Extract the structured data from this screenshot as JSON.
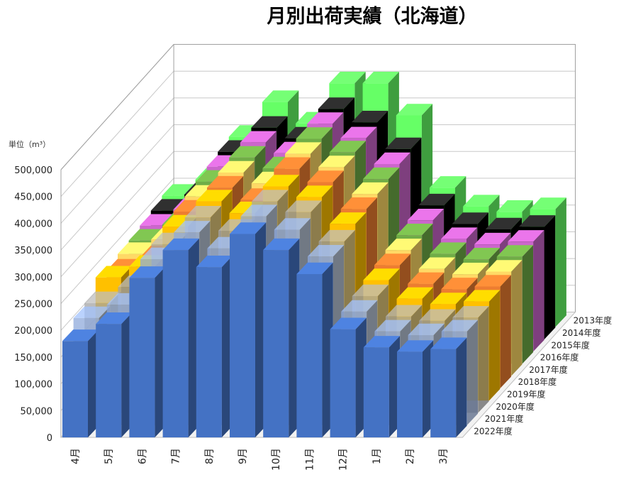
{
  "chart_data": {
    "type": "bar",
    "subtype": "3d-bar",
    "title": "月別出荷実績（北海道）",
    "unit_label": "単位（m³）",
    "xlabel": "",
    "ylabel": "",
    "ylim": [
      0,
      500000
    ],
    "y_ticks": [
      "0",
      "50,000",
      "100,000",
      "150,000",
      "200,000",
      "250,000",
      "300,000",
      "350,000",
      "400,000",
      "450,000",
      "500,000"
    ],
    "categories": [
      "4月",
      "5月",
      "6月",
      "7月",
      "8月",
      "9月",
      "10月",
      "11月",
      "12月",
      "1月",
      "2月",
      "3月"
    ],
    "series": [
      {
        "name": "2022年度",
        "color": "#4472c4",
        "values": [
          180000,
          212000,
          298000,
          350000,
          318000,
          380000,
          350000,
          305000,
          202000,
          168000,
          160000,
          165000
        ]
      },
      {
        "name": "2021年度",
        "color": "#8faadc",
        "values": [
          200000,
          225000,
          310000,
          360000,
          330000,
          390000,
          365000,
          315000,
          212000,
          175000,
          168000,
          175000
        ]
      },
      {
        "name": "2020年度",
        "color": "#a5a5a5",
        "values": [
          205000,
          235000,
          315000,
          365000,
          340000,
          395000,
          375000,
          320000,
          218000,
          180000,
          172000,
          178000
        ]
      },
      {
        "name": "2019年度",
        "color": "#ffc000",
        "values": [
          230000,
          250000,
          325000,
          372000,
          350000,
          400000,
          380000,
          330000,
          225000,
          190000,
          180000,
          185000
        ]
      },
      {
        "name": "2018年度",
        "color": "#ed7d31",
        "values": [
          220000,
          245000,
          330000,
          375000,
          352000,
          410000,
          385000,
          335000,
          230000,
          195000,
          185000,
          190000
        ]
      },
      {
        "name": "2017年度",
        "color": "#ffd966",
        "values": [
          228000,
          255000,
          335000,
          380000,
          360000,
          415000,
          390000,
          340000,
          235000,
          200000,
          190000,
          195000
        ]
      },
      {
        "name": "2016年度",
        "color": "#70ad47",
        "values": [
          230000,
          260000,
          340000,
          385000,
          365000,
          420000,
          395000,
          345000,
          240000,
          205000,
          195000,
          200000
        ]
      },
      {
        "name": "2015年度",
        "color": "#cc66cc",
        "values": [
          235000,
          265000,
          345000,
          390000,
          370000,
          425000,
          398000,
          350000,
          245000,
          210000,
          200000,
          205000
        ]
      },
      {
        "name": "2014年度",
        "color": "#000000",
        "values": [
          240000,
          270000,
          350000,
          395000,
          375000,
          430000,
          405000,
          355000,
          250000,
          215000,
          205000,
          210000
        ]
      },
      {
        "name": "2013年度",
        "color": "#66ff66",
        "values": [
          245000,
          275000,
          355000,
          420000,
          380000,
          455000,
          455000,
          395000,
          260000,
          225000,
          215000,
          220000
        ]
      }
    ],
    "legend": "none",
    "grid": true
  }
}
